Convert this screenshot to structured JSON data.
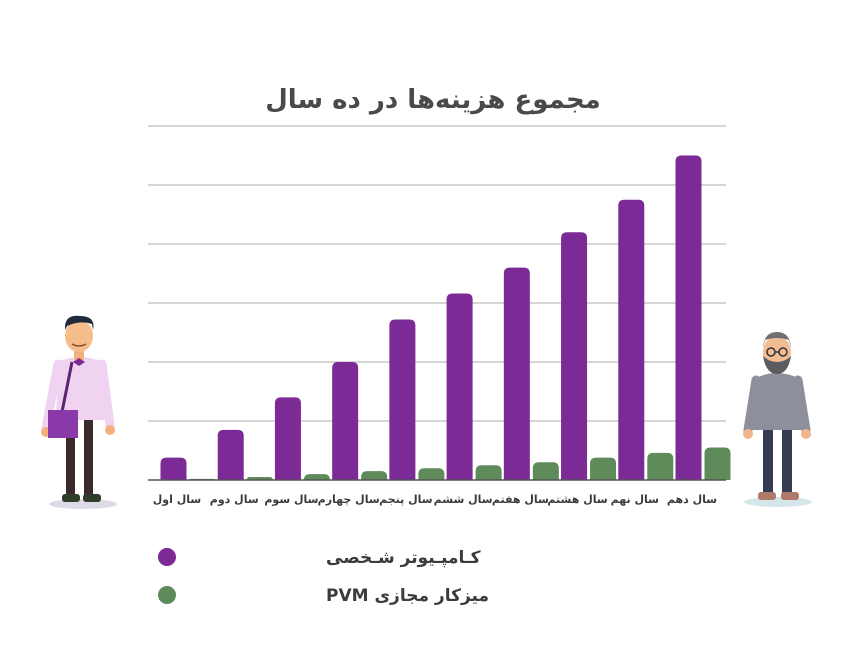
{
  "chart_data": {
    "type": "bar",
    "title": "مجموع هزینه‌ها در ده سال",
    "categories": [
      "سال اول",
      "سال دوم",
      "سال سوم",
      "سال چهارم",
      "سال پنجم",
      "سال ششم",
      "سال هفتم",
      "سال هشتم",
      "سال نهم",
      "سال دهم"
    ],
    "series": [
      {
        "name": "کـامپـیوتر شـخصی",
        "color": "#7b2a96",
        "values": [
          0.38,
          0.85,
          1.4,
          2.0,
          2.72,
          3.16,
          3.6,
          4.2,
          4.75,
          5.5
        ]
      },
      {
        "name": "میزکار مجازی PVM",
        "color": "#5f8a5a",
        "values": [
          0.02,
          0.05,
          0.1,
          0.15,
          0.2,
          0.25,
          0.3,
          0.38,
          0.46,
          0.55
        ]
      }
    ],
    "ylim": [
      0,
      6
    ],
    "grid": true,
    "legend_position": "bottom-left"
  }
}
